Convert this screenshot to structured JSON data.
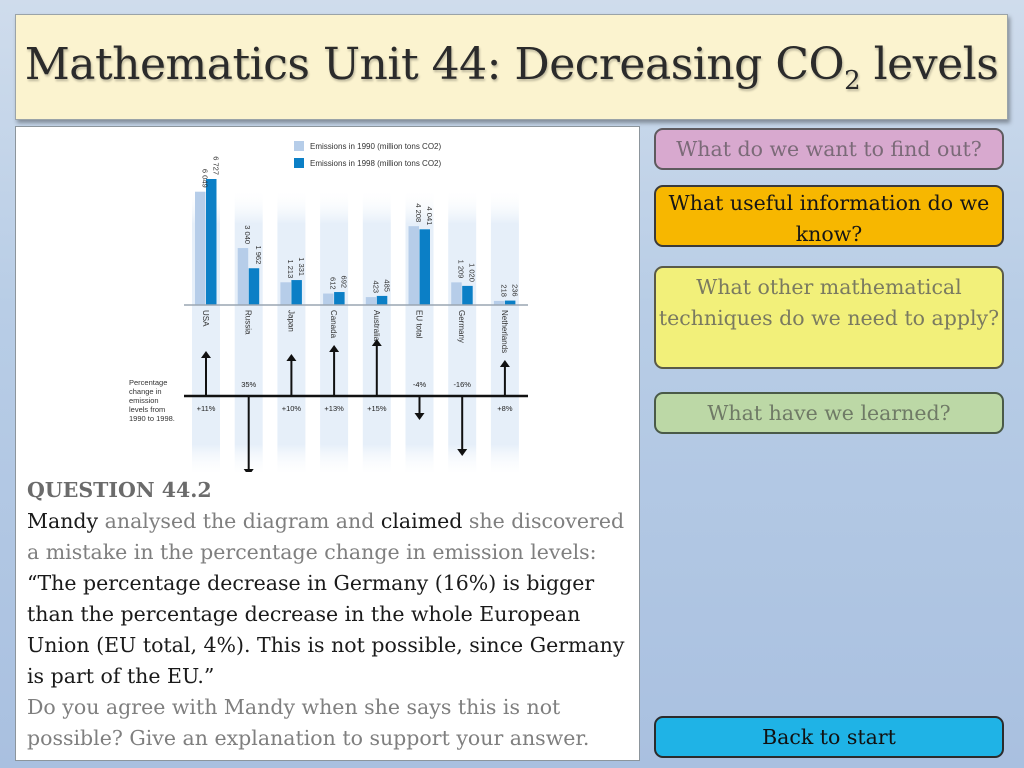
{
  "title": {
    "main": "Mathematics Unit 44: Decreasing CO",
    "sub": "2",
    "end": " levels"
  },
  "chart_data": {
    "type": "bar",
    "categories": [
      "USA",
      "Russia",
      "Japan",
      "Canada",
      "Australia",
      "EU total",
      "Germany",
      "Netherlands"
    ],
    "series": [
      {
        "name": "Emissions in 1990 (million tons CO2)",
        "values": [
          6049,
          3040,
          1213,
          612,
          423,
          4208,
          1209,
          218
        ],
        "labels": [
          "6 049",
          "3 040",
          "1 213",
          "612",
          "423",
          "4 208",
          "1 209",
          "218"
        ]
      },
      {
        "name": "Emissions in 1998 (million tons CO2)",
        "values": [
          6727,
          1962,
          1331,
          692,
          485,
          4041,
          1020,
          236
        ],
        "labels": [
          "6 727",
          "1 962",
          "1 331",
          "692",
          "485",
          "4 041",
          "1 020",
          "236"
        ]
      }
    ],
    "pct_change_label": [
      "Percentage",
      "change in",
      "emission",
      "levels from",
      "1990 to 1998."
    ],
    "pct_change": [
      "+11%",
      "35%",
      "+10%",
      "+13%",
      "+15%",
      "-4%",
      "-16%",
      "+8%"
    ],
    "pct_direction": [
      "up",
      "down",
      "up",
      "up",
      "up",
      "down",
      "down",
      "up"
    ],
    "colors": {
      "1990": "#b6cde9",
      "1998": "#0b7fc6",
      "column": "#e4eef8"
    }
  },
  "question": {
    "heading": "QUESTION 44.2",
    "mandy": "Mandy",
    "analysed": " analysed the diagram and ",
    "claimed": "claimed",
    "she": " she discovered a mistake in the percentage change in emission levels: ",
    "quote": "“The percentage decrease in Germany (16%) is bigger than the percentage decrease in the whole European Union (EU total, 4%).  This is not possible, since Germany is part of the EU.”",
    "ask": "Do you agree with Mandy when she says this is not possible?  Give an explanation to support your answer."
  },
  "nav": {
    "find": "What do we want to find out?",
    "useful": "What useful information do we know?",
    "other": "What other mathematical techniques do we need to apply?",
    "learned": "What have we learned?",
    "back": "Back to start"
  }
}
